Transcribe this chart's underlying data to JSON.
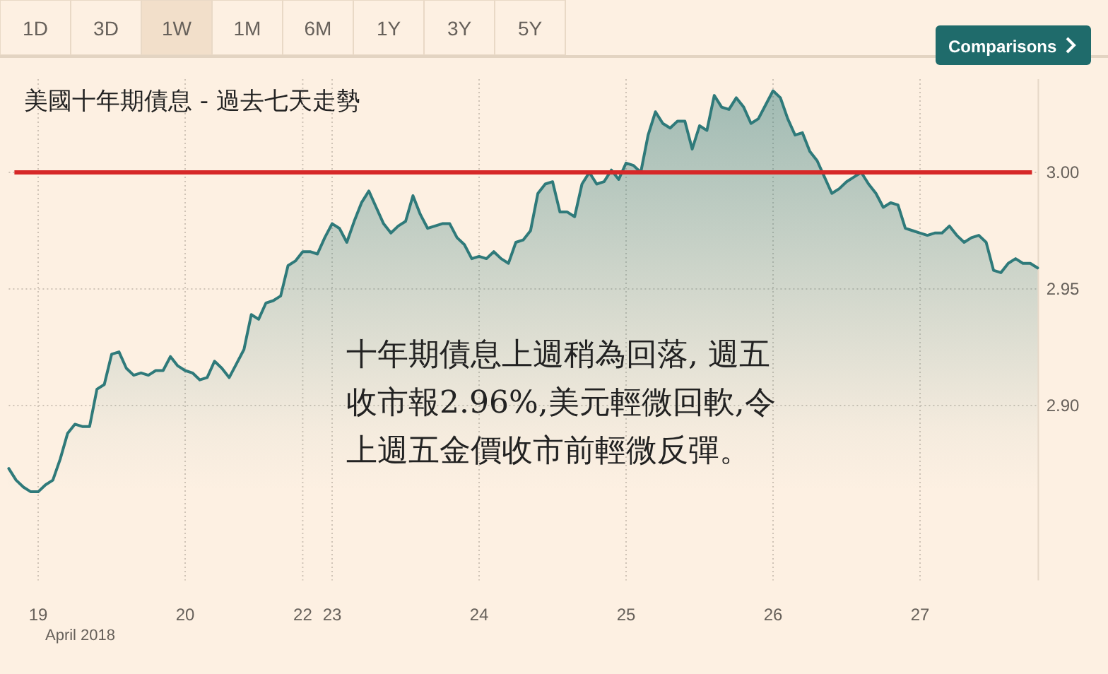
{
  "chart_data": {
    "type": "area",
    "title": "美國十年期債息 - 過去七天走勢",
    "categories": [
      null,
      null,
      null,
      null,
      "19",
      null,
      null,
      null,
      null,
      null,
      null,
      null,
      null,
      null,
      null,
      null,
      null,
      null,
      null,
      null,
      null,
      null,
      null,
      null,
      "20",
      null,
      null,
      null,
      null,
      null,
      null,
      null,
      null,
      null,
      null,
      null,
      null,
      null,
      null,
      null,
      "22",
      null,
      null,
      null,
      "23",
      null,
      null,
      null,
      null,
      null,
      null,
      null,
      null,
      null,
      null,
      null,
      null,
      null,
      null,
      null,
      null,
      null,
      null,
      null,
      "24",
      null,
      null,
      null,
      null,
      null,
      null,
      null,
      null,
      null,
      null,
      null,
      null,
      null,
      null,
      null,
      null,
      null,
      null,
      null,
      "25",
      null,
      null,
      null,
      null,
      null,
      null,
      null,
      null,
      null,
      null,
      null,
      null,
      null,
      null,
      null,
      null,
      null,
      null,
      null,
      "26",
      null,
      null,
      null,
      null,
      null,
      null,
      null,
      null,
      null,
      null,
      null,
      null,
      null,
      null,
      null,
      null,
      null,
      null,
      null,
      "27",
      null,
      null,
      null,
      null,
      null,
      null,
      null,
      null,
      null,
      null,
      null,
      null,
      null,
      null,
      null,
      null
    ],
    "series": [
      {
        "color": "#2f7a7a",
        "values": [
          2.873,
          2.868,
          2.865,
          2.863,
          2.863,
          2.866,
          2.868,
          2.877,
          2.888,
          2.892,
          2.891,
          2.891,
          2.907,
          2.909,
          2.922,
          2.923,
          2.916,
          2.913,
          2.914,
          2.913,
          2.915,
          2.915,
          2.921,
          2.917,
          2.915,
          2.914,
          2.911,
          2.912,
          2.919,
          2.916,
          2.912,
          2.918,
          2.924,
          2.939,
          2.937,
          2.944,
          2.945,
          2.947,
          2.96,
          2.962,
          2.966,
          2.966,
          2.965,
          2.972,
          2.978,
          2.976,
          2.97,
          2.979,
          2.987,
          2.992,
          2.985,
          2.978,
          2.974,
          2.977,
          2.979,
          2.99,
          2.982,
          2.976,
          2.977,
          2.978,
          2.978,
          2.972,
          2.969,
          2.963,
          2.964,
          2.963,
          2.966,
          2.963,
          2.961,
          2.97,
          2.971,
          2.975,
          2.991,
          2.995,
          2.996,
          2.983,
          2.983,
          2.981,
          2.995,
          3.0,
          2.995,
          2.996,
          3.001,
          2.997,
          3.004,
          3.003,
          3.0,
          3.016,
          3.026,
          3.021,
          3.019,
          3.022,
          3.022,
          3.01,
          3.02,
          3.018,
          3.033,
          3.028,
          3.027,
          3.032,
          3.028,
          3.021,
          3.023,
          3.029,
          3.035,
          3.032,
          3.023,
          3.016,
          3.017,
          3.009,
          3.005,
          2.998,
          2.991,
          2.993,
          2.996,
          2.998,
          3.0,
          2.995,
          2.991,
          2.985,
          2.987,
          2.986,
          2.976,
          2.975,
          2.974,
          2.973,
          2.974,
          2.974,
          2.977,
          2.973,
          2.97,
          2.972,
          2.973,
          2.97,
          2.958,
          2.957,
          2.961,
          2.963,
          2.961,
          2.961,
          2.959
        ]
      }
    ],
    "ylim": [
      2.825,
      3.04
    ],
    "yticks": [
      {
        "value": 2.9,
        "label": "2.90"
      },
      {
        "value": 2.95,
        "label": "2.95"
      },
      {
        "value": 3.0,
        "label": "3.00"
      }
    ],
    "grid": true,
    "ref_lines": [
      {
        "axis": "y",
        "value": 3.0,
        "color": "#d62828"
      }
    ],
    "annotations": [
      "十年期債息上週稍為回落, 週五收市報2.96%,美元輕微回軟,令上週五金價收市前輕微反彈。",
      "April 2018",
      "Comparisons",
      "1D",
      "3D",
      "1W",
      "1M",
      "6M",
      "1Y",
      "3Y",
      "5Y"
    ]
  }
}
